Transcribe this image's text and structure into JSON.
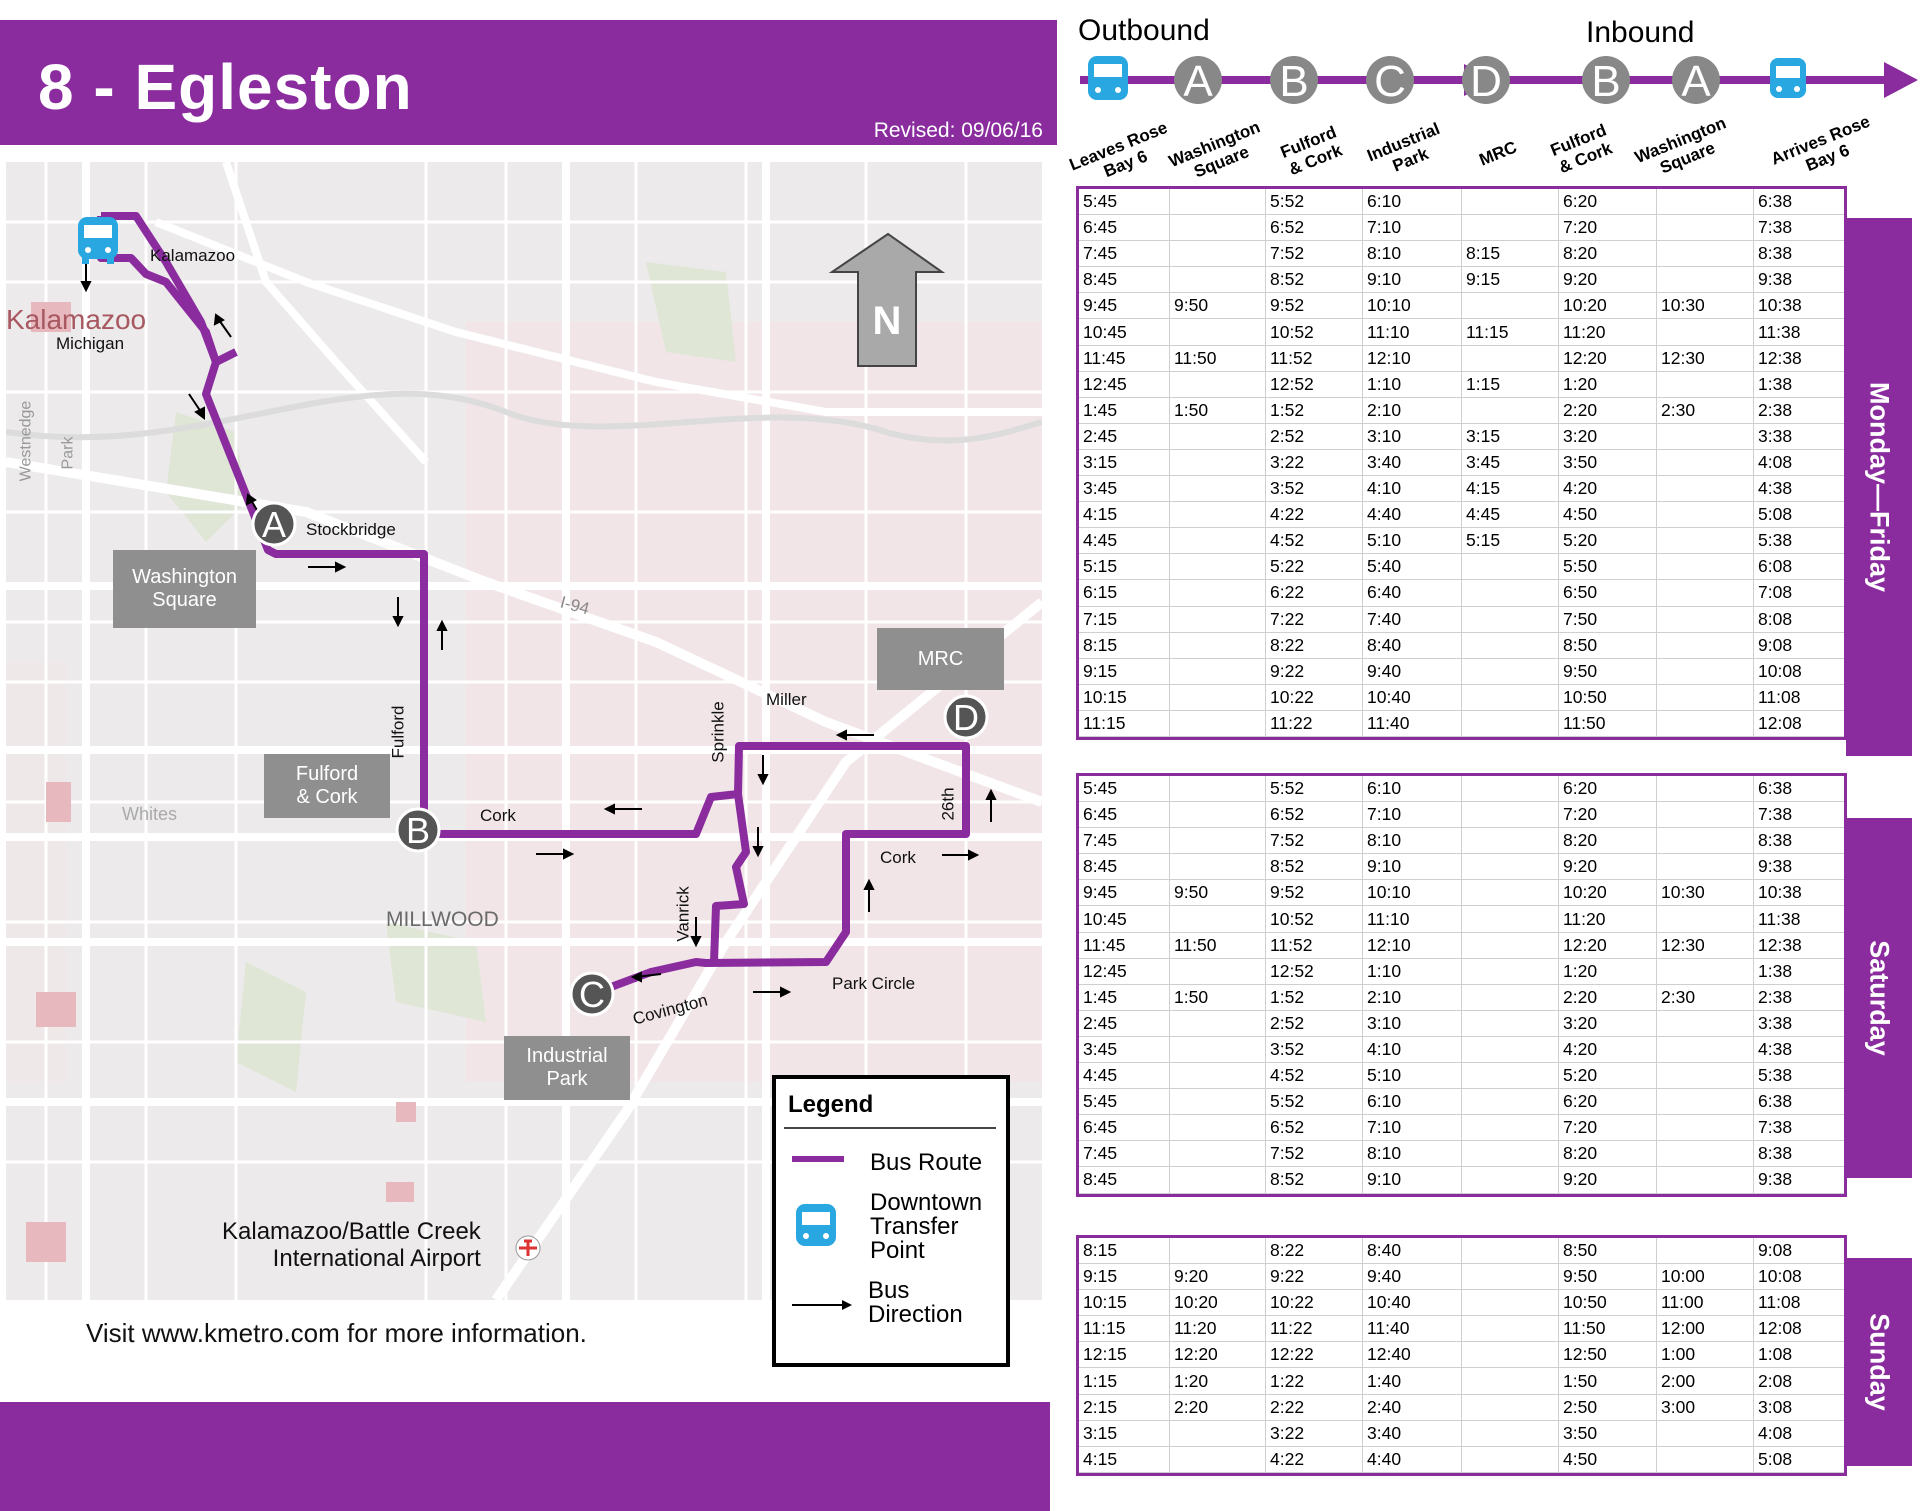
{
  "header": {
    "route_title": "8 - Egleston",
    "revised": "Revised: 09/06/16"
  },
  "colors": {
    "route": "#8a2b9e",
    "transfer_icon": "#29a7e1",
    "stop_marker": "#555555",
    "stop_box": "#8f8f8f"
  },
  "map": {
    "north_label": "N",
    "stops": [
      {
        "letter": "A",
        "name": "Washington Square"
      },
      {
        "letter": "B",
        "name": "Fulford & Cork"
      },
      {
        "letter": "C",
        "name": "Industrial Park"
      },
      {
        "letter": "D",
        "name": "MRC"
      }
    ],
    "box_labels": {
      "washington": [
        "Washington",
        "Square"
      ],
      "fulford": [
        "Fulford",
        "& Cork"
      ],
      "industrial": [
        "Industrial",
        "Park"
      ],
      "mrc": "MRC"
    },
    "streets": {
      "kalamazoo": "Kalamazoo",
      "michigan": "Michigan",
      "stockbridge": "Stockbridge",
      "fulford": "Fulford",
      "cork1": "Cork",
      "cork2": "Cork",
      "sprinkle": "Sprinkle",
      "miller": "Miller",
      "sixth26": "26th",
      "vanrick": "Vanrick",
      "covington": "Covington",
      "park_circle": "Park Circle",
      "i94": "I-94"
    },
    "areas": {
      "kalamazoo_city": "Kalamazoo",
      "westnedge": "Westnedge",
      "park": "Park",
      "whites": "Whites",
      "millwood": "MILLWOOD",
      "airport": [
        "Kalamazoo/Battle Creek",
        "International Airport"
      ]
    },
    "icons": [
      "bus-icon",
      "airplane-icon",
      "north-arrow-icon"
    ]
  },
  "visit_text": "Visit www.kmetro.com for more information.",
  "legend": {
    "title": "Legend",
    "route": "Bus Route",
    "transfer": [
      "Downtown",
      "Transfer",
      "Point"
    ],
    "direction": [
      "Bus",
      "Direction"
    ]
  },
  "schedule": {
    "outbound_label": "Outbound",
    "inbound_label": "Inbound",
    "stop_sequence": [
      "bus",
      "A",
      "B",
      "C",
      "D",
      "B",
      "A",
      "bus"
    ],
    "columns": [
      [
        "Leaves Rose",
        "Bay 6"
      ],
      [
        "Washington",
        "Square"
      ],
      [
        "Fulford",
        "& Cork"
      ],
      [
        "Industrial",
        "Park"
      ],
      [
        "MRC"
      ],
      [
        "Fulford",
        "& Cork"
      ],
      [
        "Washington",
        "Square"
      ],
      [
        "Arrives Rose",
        "Bay 6"
      ]
    ],
    "weekday_label": "Monday—Friday",
    "weekday": [
      [
        "5:45",
        "",
        "5:52",
        "6:10",
        "",
        "6:20",
        "",
        "6:38"
      ],
      [
        "6:45",
        "",
        "6:52",
        "7:10",
        "",
        "7:20",
        "",
        "7:38"
      ],
      [
        "7:45",
        "",
        "7:52",
        "8:10",
        "8:15",
        "8:20",
        "",
        "8:38"
      ],
      [
        "8:45",
        "",
        "8:52",
        "9:10",
        "9:15",
        "9:20",
        "",
        "9:38"
      ],
      [
        "9:45",
        "9:50",
        "9:52",
        "10:10",
        "",
        "10:20",
        "10:30",
        "10:38"
      ],
      [
        "10:45",
        "",
        "10:52",
        "11:10",
        "11:15",
        "11:20",
        "",
        "11:38"
      ],
      [
        "11:45",
        "11:50",
        "11:52",
        "12:10",
        "",
        "12:20",
        "12:30",
        "12:38"
      ],
      [
        "12:45",
        "",
        "12:52",
        "1:10",
        "1:15",
        "1:20",
        "",
        "1:38"
      ],
      [
        "1:45",
        "1:50",
        "1:52",
        "2:10",
        "",
        "2:20",
        "2:30",
        "2:38"
      ],
      [
        "2:45",
        "",
        "2:52",
        "3:10",
        "3:15",
        "3:20",
        "",
        "3:38"
      ],
      [
        "3:15",
        "",
        "3:22",
        "3:40",
        "3:45",
        "3:50",
        "",
        "4:08"
      ],
      [
        "3:45",
        "",
        "3:52",
        "4:10",
        "4:15",
        "4:20",
        "",
        "4:38"
      ],
      [
        "4:15",
        "",
        "4:22",
        "4:40",
        "4:45",
        "4:50",
        "",
        "5:08"
      ],
      [
        "4:45",
        "",
        "4:52",
        "5:10",
        "5:15",
        "5:20",
        "",
        "5:38"
      ],
      [
        "5:15",
        "",
        "5:22",
        "5:40",
        "",
        "5:50",
        "",
        "6:08"
      ],
      [
        "6:15",
        "",
        "6:22",
        "6:40",
        "",
        "6:50",
        "",
        "7:08"
      ],
      [
        "7:15",
        "",
        "7:22",
        "7:40",
        "",
        "7:50",
        "",
        "8:08"
      ],
      [
        "8:15",
        "",
        "8:22",
        "8:40",
        "",
        "8:50",
        "",
        "9:08"
      ],
      [
        "9:15",
        "",
        "9:22",
        "9:40",
        "",
        "9:50",
        "",
        "10:08"
      ],
      [
        "10:15",
        "",
        "10:22",
        "10:40",
        "",
        "10:50",
        "",
        "11:08"
      ],
      [
        "11:15",
        "",
        "11:22",
        "11:40",
        "",
        "11:50",
        "",
        "12:08"
      ]
    ],
    "saturday_label": "Saturday",
    "saturday": [
      [
        "5:45",
        "",
        "5:52",
        "6:10",
        "",
        "6:20",
        "",
        "6:38"
      ],
      [
        "6:45",
        "",
        "6:52",
        "7:10",
        "",
        "7:20",
        "",
        "7:38"
      ],
      [
        "7:45",
        "",
        "7:52",
        "8:10",
        "",
        "8:20",
        "",
        "8:38"
      ],
      [
        "8:45",
        "",
        "8:52",
        "9:10",
        "",
        "9:20",
        "",
        "9:38"
      ],
      [
        "9:45",
        "9:50",
        "9:52",
        "10:10",
        "",
        "10:20",
        "10:30",
        "10:38"
      ],
      [
        "10:45",
        "",
        "10:52",
        "11:10",
        "",
        "11:20",
        "",
        "11:38"
      ],
      [
        "11:45",
        "11:50",
        "11:52",
        "12:10",
        "",
        "12:20",
        "12:30",
        "12:38"
      ],
      [
        "12:45",
        "",
        "12:52",
        "1:10",
        "",
        "1:20",
        "",
        "1:38"
      ],
      [
        "1:45",
        "1:50",
        "1:52",
        "2:10",
        "",
        "2:20",
        "2:30",
        "2:38"
      ],
      [
        "2:45",
        "",
        "2:52",
        "3:10",
        "",
        "3:20",
        "",
        "3:38"
      ],
      [
        "3:45",
        "",
        "3:52",
        "4:10",
        "",
        "4:20",
        "",
        "4:38"
      ],
      [
        "4:45",
        "",
        "4:52",
        "5:10",
        "",
        "5:20",
        "",
        "5:38"
      ],
      [
        "5:45",
        "",
        "5:52",
        "6:10",
        "",
        "6:20",
        "",
        "6:38"
      ],
      [
        "6:45",
        "",
        "6:52",
        "7:10",
        "",
        "7:20",
        "",
        "7:38"
      ],
      [
        "7:45",
        "",
        "7:52",
        "8:10",
        "",
        "8:20",
        "",
        "8:38"
      ],
      [
        "8:45",
        "",
        "8:52",
        "9:10",
        "",
        "9:20",
        "",
        "9:38"
      ]
    ],
    "sunday_label": "Sunday",
    "sunday": [
      [
        "8:15",
        "",
        "8:22",
        "8:40",
        "",
        "8:50",
        "",
        "9:08"
      ],
      [
        "9:15",
        "9:20",
        "9:22",
        "9:40",
        "",
        "9:50",
        "10:00",
        "10:08"
      ],
      [
        "10:15",
        "10:20",
        "10:22",
        "10:40",
        "",
        "10:50",
        "11:00",
        "11:08"
      ],
      [
        "11:15",
        "11:20",
        "11:22",
        "11:40",
        "",
        "11:50",
        "12:00",
        "12:08"
      ],
      [
        "12:15",
        "12:20",
        "12:22",
        "12:40",
        "",
        "12:50",
        "1:00",
        "1:08"
      ],
      [
        "1:15",
        "1:20",
        "1:22",
        "1:40",
        "",
        "1:50",
        "2:00",
        "2:08"
      ],
      [
        "2:15",
        "2:20",
        "2:22",
        "2:40",
        "",
        "2:50",
        "3:00",
        "3:08"
      ],
      [
        "3:15",
        "",
        "3:22",
        "3:40",
        "",
        "3:50",
        "",
        "4:08"
      ],
      [
        "4:15",
        "",
        "4:22",
        "4:40",
        "",
        "4:50",
        "",
        "5:08"
      ]
    ]
  }
}
